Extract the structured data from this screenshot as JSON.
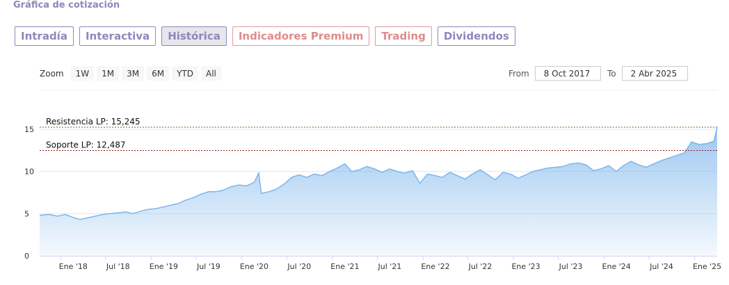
{
  "title": "Gráfica de cotización",
  "tabs": [
    {
      "label": "Intradía",
      "state": "normal"
    },
    {
      "label": "Interactiva",
      "state": "normal"
    },
    {
      "label": "Histórica",
      "state": "active"
    },
    {
      "label": "Indicadores Premium",
      "state": "premium"
    },
    {
      "label": "Trading",
      "state": "premium"
    },
    {
      "label": "Dividendos",
      "state": "normal"
    }
  ],
  "zoom": {
    "label": "Zoom",
    "buttons": [
      "1W",
      "1M",
      "3M",
      "6M",
      "YTD",
      "All"
    ]
  },
  "range": {
    "from_label": "From",
    "from_value": "8 Oct 2017",
    "to_label": "To",
    "to_value": "2 Abr 2025"
  },
  "colors": {
    "accent": "#8c88bc",
    "premium": "#e08b8b",
    "line": "#7cb5ec",
    "resistance": "#3a7a1e",
    "support": "#8b1a1a"
  },
  "chart_data": {
    "type": "area",
    "x_tick_labels": [
      "Ene '18",
      "Jul '18",
      "Ene '19",
      "Jul '19",
      "Ene '20",
      "Jul '20",
      "Ene '21",
      "Jul '21",
      "Ene '22",
      "Jul '22",
      "Ene '23",
      "Jul '23",
      "Ene '24",
      "Jul '24",
      "Ene '25"
    ],
    "y_ticks": [
      0,
      5,
      10,
      15
    ],
    "ylim": [
      0,
      15.5
    ],
    "x_range": [
      "2017-10-08",
      "2025-04-02"
    ],
    "reference_lines": [
      {
        "label": "Resistencia LP: 15,245",
        "value": 15.245,
        "kind": "resistance"
      },
      {
        "label": "Soporte LP: 12,487",
        "value": 12.487,
        "kind": "support"
      }
    ],
    "series": [
      {
        "x": [
          "2017-10-08",
          "2017-11-15",
          "2017-12-20",
          "2018-01-20",
          "2018-02-15",
          "2018-03-20",
          "2018-04-20",
          "2018-05-20",
          "2018-06-20",
          "2018-07-20",
          "2018-08-20",
          "2018-09-20",
          "2018-10-20",
          "2018-11-20",
          "2018-12-20",
          "2019-01-20",
          "2019-02-20",
          "2019-03-20",
          "2019-04-20",
          "2019-05-20",
          "2019-06-20",
          "2019-07-20",
          "2019-08-20",
          "2019-09-20",
          "2019-10-20",
          "2019-11-20",
          "2019-12-20",
          "2020-01-20",
          "2020-02-20",
          "2020-03-10",
          "2020-03-20",
          "2020-04-20",
          "2020-05-20",
          "2020-06-20",
          "2020-07-20",
          "2020-08-20",
          "2020-09-20",
          "2020-10-20",
          "2020-11-20",
          "2020-12-20",
          "2021-01-20",
          "2021-02-20",
          "2021-03-20",
          "2021-04-20",
          "2021-05-20",
          "2021-06-20",
          "2021-07-20",
          "2021-08-20",
          "2021-09-20",
          "2021-10-20",
          "2021-11-20",
          "2021-12-20",
          "2022-01-20",
          "2022-02-20",
          "2022-03-20",
          "2022-04-20",
          "2022-05-20",
          "2022-06-20",
          "2022-07-20",
          "2022-08-20",
          "2022-09-20",
          "2022-10-20",
          "2022-11-20",
          "2022-12-20",
          "2023-01-20",
          "2023-02-20",
          "2023-03-20",
          "2023-04-20",
          "2023-05-20",
          "2023-06-20",
          "2023-07-20",
          "2023-08-20",
          "2023-09-20",
          "2023-10-20",
          "2023-11-20",
          "2023-12-20",
          "2024-01-20",
          "2024-02-20",
          "2024-03-20",
          "2024-04-20",
          "2024-05-20",
          "2024-06-20",
          "2024-07-20",
          "2024-08-20",
          "2024-09-20",
          "2024-10-20",
          "2024-11-20",
          "2024-12-20",
          "2025-01-20",
          "2025-02-20",
          "2025-03-20",
          "2025-04-02"
        ],
        "values": [
          4.8,
          4.9,
          4.7,
          4.9,
          4.6,
          4.3,
          4.5,
          4.7,
          4.9,
          5.0,
          5.1,
          5.2,
          5.0,
          5.3,
          5.5,
          5.6,
          5.8,
          6.0,
          6.2,
          6.6,
          6.9,
          7.3,
          7.6,
          7.6,
          7.8,
          8.2,
          8.4,
          8.3,
          8.7,
          9.8,
          7.4,
          7.6,
          7.9,
          8.5,
          9.3,
          9.6,
          9.3,
          9.7,
          9.5,
          10.0,
          10.4,
          10.9,
          10.0,
          10.2,
          10.6,
          10.3,
          9.9,
          10.3,
          10.0,
          9.8,
          10.1,
          8.6,
          9.7,
          9.5,
          9.3,
          9.9,
          9.5,
          9.1,
          9.7,
          10.2,
          9.6,
          9.0,
          9.9,
          9.7,
          9.2,
          9.6,
          10.0,
          10.2,
          10.4,
          10.5,
          10.6,
          10.9,
          11.0,
          10.8,
          10.1,
          10.3,
          10.7,
          10.0,
          10.7,
          11.2,
          10.8,
          10.5,
          10.9,
          11.3,
          11.6,
          11.9,
          12.2,
          13.5,
          13.2,
          13.3,
          13.6,
          15.2
        ]
      }
    ]
  }
}
